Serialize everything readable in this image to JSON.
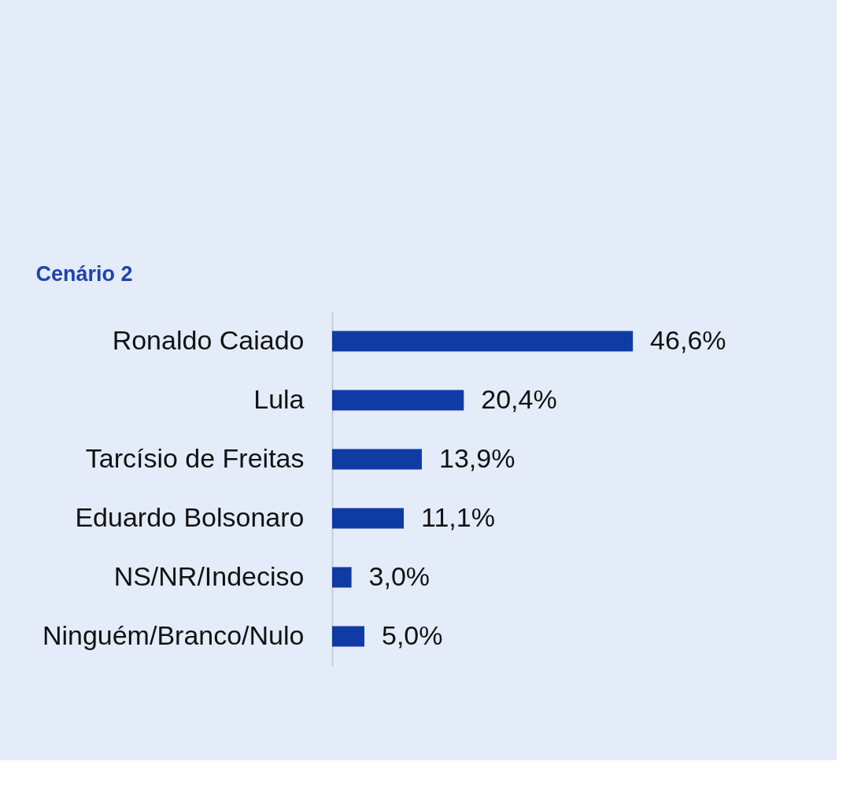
{
  "chart_data": {
    "type": "bar",
    "orientation": "horizontal",
    "title": "Cenário 2",
    "categories": [
      "Ronaldo Caiado",
      "Lula",
      "Tarcísio de Freitas",
      "Eduardo Bolsonaro",
      "NS/NR/Indeciso",
      "Ninguém/Branco/Nulo"
    ],
    "values": [
      46.6,
      20.4,
      13.9,
      11.1,
      3.0,
      5.0
    ],
    "value_labels": [
      "46,6%",
      "20,4%",
      "13,9%",
      "11,1%",
      "3,0%",
      "5,0%"
    ],
    "color": "#0f3ba5",
    "tick_labels": "y"
  }
}
